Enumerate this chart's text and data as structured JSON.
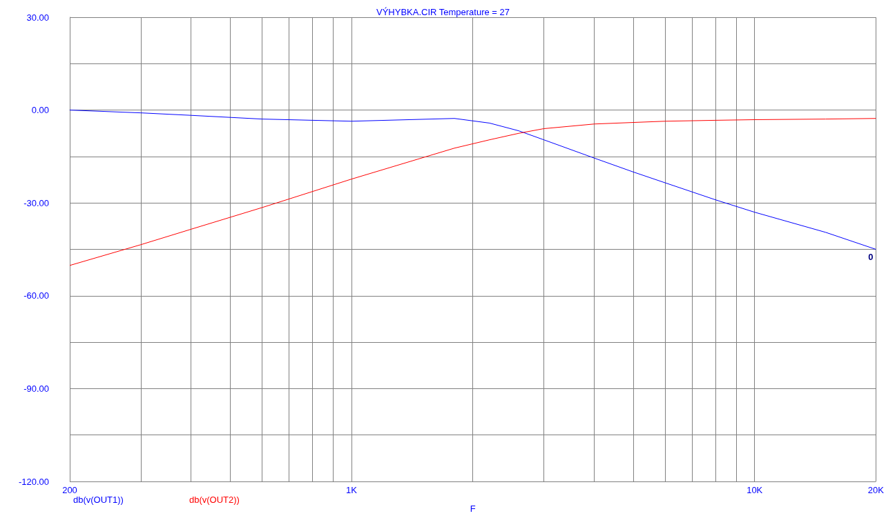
{
  "chart_data": {
    "type": "line",
    "title": "VÝHYBKA.CIR Temperature = 27",
    "xlabel": "F",
    "log": "x",
    "grid": true,
    "legend": "bottom left",
    "marker": "none",
    "line_style": "solid",
    "xlim": [
      200,
      20000
    ],
    "ylim": [
      -120,
      30
    ],
    "xticks": [
      {
        "value": 200,
        "label": "200"
      },
      {
        "value": 300,
        "label": null
      },
      {
        "value": 400,
        "label": null
      },
      {
        "value": 500,
        "label": null
      },
      {
        "value": 600,
        "label": null
      },
      {
        "value": 700,
        "label": null
      },
      {
        "value": 800,
        "label": null
      },
      {
        "value": 900,
        "label": null
      },
      {
        "value": 1000,
        "label": "1K"
      },
      {
        "value": 2000,
        "label": null
      },
      {
        "value": 3000,
        "label": null
      },
      {
        "value": 4000,
        "label": null
      },
      {
        "value": 5000,
        "label": null
      },
      {
        "value": 6000,
        "label": null
      },
      {
        "value": 7000,
        "label": null
      },
      {
        "value": 8000,
        "label": null
      },
      {
        "value": 9000,
        "label": null
      },
      {
        "value": 10000,
        "label": "10K"
      },
      {
        "value": 20000,
        "label": "20K"
      }
    ],
    "yticks": [
      {
        "value": -120,
        "label": "-120.00"
      },
      {
        "value": -105,
        "label": null
      },
      {
        "value": -90,
        "label": "-90.00"
      },
      {
        "value": -75,
        "label": null
      },
      {
        "value": -60,
        "label": "-60.00"
      },
      {
        "value": -45,
        "label": null
      },
      {
        "value": -30,
        "label": "-30.00"
      },
      {
        "value": -15,
        "label": null
      },
      {
        "value": 0,
        "label": "0.00"
      },
      {
        "value": 15,
        "label": null
      },
      {
        "value": 30,
        "label": "30.00"
      }
    ],
    "x": [
      200,
      300,
      400,
      600,
      1000,
      1800,
      2200,
      2600,
      3000,
      4000,
      5000,
      6000,
      8000,
      10000,
      15000,
      20000
    ],
    "series": [
      {
        "name": "db(v(OUT1))",
        "color": "#0000ff",
        "values": [
          0,
          -0.9,
          -1.7,
          -2.9,
          -3.6,
          -2.7,
          -4.2,
          -6.7,
          -9.6,
          -15.5,
          -20,
          -23.5,
          -29,
          -33,
          -39.5,
          -45
        ]
      },
      {
        "name": "db(v(OUT2))",
        "color": "#ff0000",
        "values": [
          -50.2,
          -43.5,
          -38.5,
          -31.5,
          -22.3,
          -12.3,
          -9.6,
          -7.5,
          -6,
          -4.5,
          -4,
          -3.6,
          -3.3,
          -3.1,
          -2.9,
          -2.7
        ]
      }
    ],
    "annotations": [
      {
        "text": "0",
        "x": 20000,
        "y": -45
      }
    ]
  }
}
